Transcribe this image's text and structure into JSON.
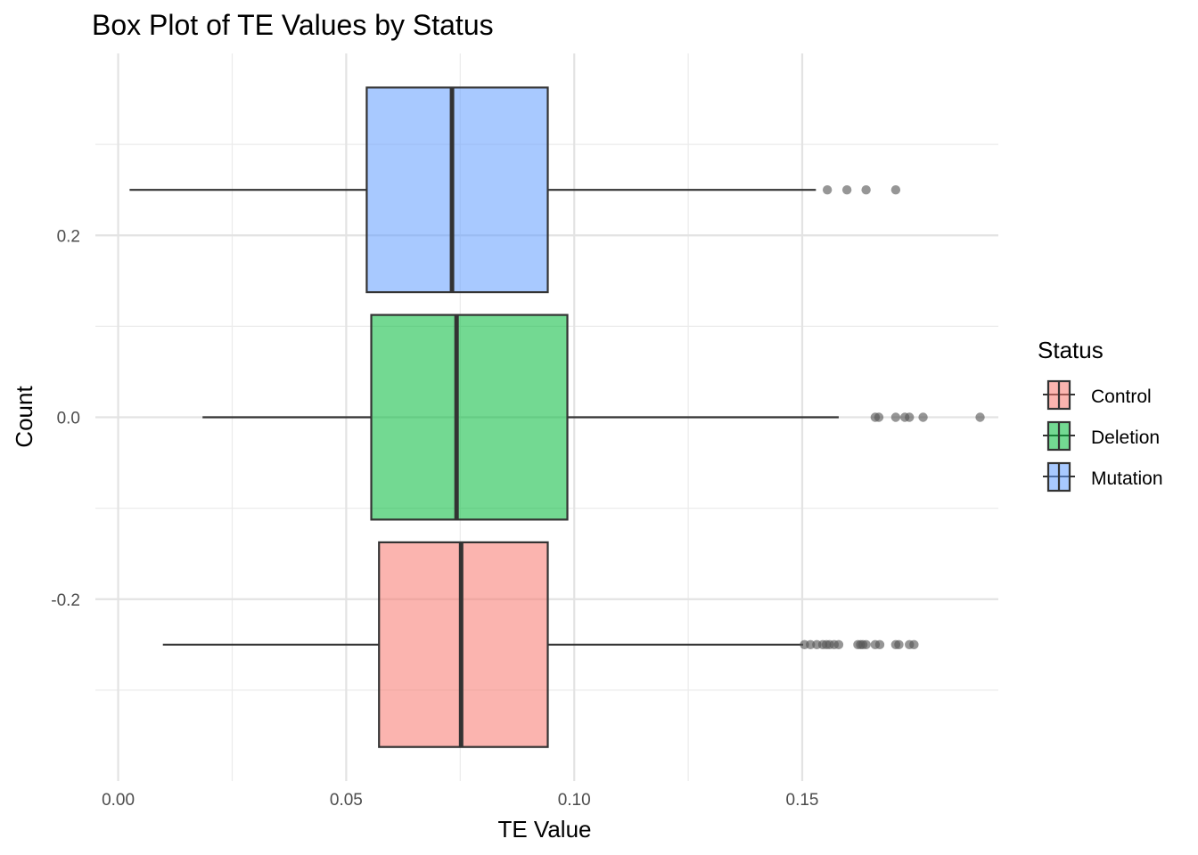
{
  "chart_data": {
    "type": "boxplot",
    "orientation": "horizontal",
    "title": "Box Plot of TE Values by Status",
    "xlabel": "TE Value",
    "ylabel": "Count",
    "xlim": [
      -0.005,
      0.193
    ],
    "ylim": [
      -0.4,
      0.4
    ],
    "x_ticks": [
      0.0,
      0.05,
      0.1,
      0.15
    ],
    "x_tick_labels": [
      "0.00",
      "0.05",
      "0.10",
      "0.15"
    ],
    "y_ticks": [
      -0.2,
      0.0,
      0.2
    ],
    "y_tick_labels": [
      "-0.2",
      "0.0",
      "0.2"
    ],
    "grid": true,
    "legend": {
      "title": "Status",
      "position": "right",
      "entries": [
        "Control",
        "Deletion",
        "Mutation"
      ]
    },
    "colors": {
      "Control": "#F8766D",
      "Deletion": "#00BA38",
      "Mutation": "#619CFF",
      "outline": "#333333",
      "outlier": "#555555"
    },
    "box_fill_opacity": 0.55,
    "series": [
      {
        "name": "Control",
        "center": -0.25,
        "box_span": [
          -0.3625,
          -0.1375
        ],
        "whisker_low": 0.0098,
        "q1": 0.0572,
        "median": 0.0752,
        "q3": 0.0942,
        "whisker_high": 0.1502,
        "outliers": [
          0.1505,
          0.1518,
          0.1532,
          0.1545,
          0.1553,
          0.156,
          0.157,
          0.158,
          0.1622,
          0.1628,
          0.1633,
          0.164,
          0.166,
          0.167,
          0.1705,
          0.1712,
          0.1735,
          0.1745
        ]
      },
      {
        "name": "Deletion",
        "center": 0.0,
        "box_span": [
          -0.1125,
          0.1125
        ],
        "whisker_low": 0.0185,
        "q1": 0.0555,
        "median": 0.0742,
        "q3": 0.0985,
        "whisker_high": 0.158,
        "outliers": [
          0.166,
          0.1668,
          0.1705,
          0.1725,
          0.1735,
          0.1765,
          0.189
        ]
      },
      {
        "name": "Mutation",
        "center": 0.25,
        "box_span": [
          0.1375,
          0.3625
        ],
        "whisker_low": 0.0025,
        "q1": 0.0545,
        "median": 0.0732,
        "q3": 0.0942,
        "whisker_high": 0.153,
        "outliers": [
          0.1555,
          0.1598,
          0.164,
          0.1705
        ]
      }
    ]
  }
}
